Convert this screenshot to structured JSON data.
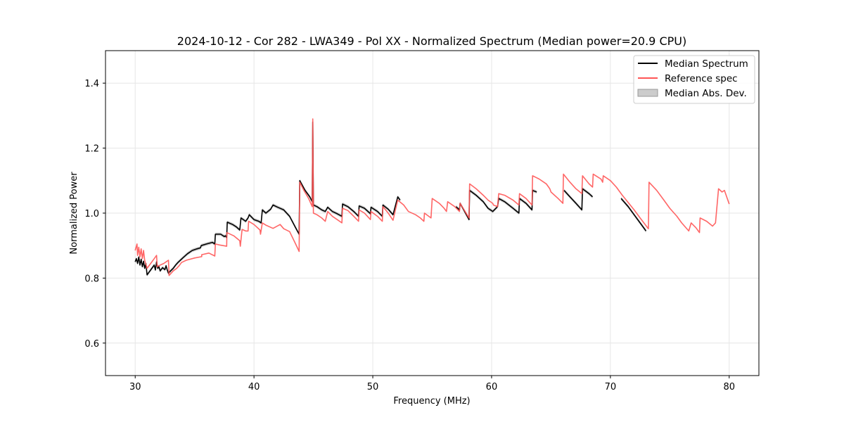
{
  "chart_data": {
    "type": "line",
    "title": "2024-10-12 - Cor 282 - LWA349 - Pol XX - Normalized Spectrum (Median power=20.9 CPU)",
    "xlabel": "Frequency (MHz)",
    "ylabel": "Normalized Power",
    "xlim": [
      27.5,
      82.5
    ],
    "ylim": [
      0.5,
      1.5
    ],
    "xticks": [
      30,
      40,
      50,
      60,
      70,
      80
    ],
    "yticks": [
      0.6,
      0.8,
      1.0,
      1.2,
      1.4
    ],
    "xtick_labels": [
      "30",
      "40",
      "50",
      "60",
      "70",
      "80"
    ],
    "ytick_labels": [
      "0.6",
      "0.8",
      "1.0",
      "1.2",
      "1.4"
    ],
    "grid": true,
    "legend_position": "top-right",
    "legend": [
      "Median Spectrum",
      "Reference spec",
      "Median Abs. Dev."
    ],
    "colors": {
      "median": "#000000",
      "reference": "#ff5555",
      "mad": "#aaaaaa",
      "grid": "#e6e6e6",
      "axes": "#000000"
    },
    "series": [
      {
        "name": "Reference spec",
        "points": [
          [
            30.0,
            0.885
          ],
          [
            30.15,
            0.905
          ],
          [
            30.2,
            0.87
          ],
          [
            30.3,
            0.895
          ],
          [
            30.4,
            0.865
          ],
          [
            30.5,
            0.89
          ],
          [
            30.6,
            0.86
          ],
          [
            30.7,
            0.885
          ],
          [
            30.8,
            0.855
          ],
          [
            31.0,
            0.83
          ],
          [
            31.3,
            0.845
          ],
          [
            31.6,
            0.86
          ],
          [
            31.8,
            0.87
          ],
          [
            31.85,
            0.835
          ],
          [
            32.1,
            0.84
          ],
          [
            32.4,
            0.845
          ],
          [
            32.6,
            0.85
          ],
          [
            32.8,
            0.855
          ],
          [
            32.85,
            0.808
          ],
          [
            33.2,
            0.822
          ],
          [
            33.5,
            0.83
          ],
          [
            33.7,
            0.838
          ],
          [
            33.9,
            0.848
          ],
          [
            34.3,
            0.855
          ],
          [
            35.0,
            0.862
          ],
          [
            35.6,
            0.866
          ],
          [
            35.6,
            0.872
          ],
          [
            36.2,
            0.877
          ],
          [
            36.7,
            0.868
          ],
          [
            36.75,
            0.905
          ],
          [
            37.1,
            0.902
          ],
          [
            37.7,
            0.898
          ],
          [
            37.72,
            0.94
          ],
          [
            38.3,
            0.93
          ],
          [
            38.8,
            0.915
          ],
          [
            38.85,
            0.898
          ],
          [
            39.0,
            0.95
          ],
          [
            39.3,
            0.945
          ],
          [
            39.5,
            0.945
          ],
          [
            39.55,
            0.975
          ],
          [
            40.0,
            0.965
          ],
          [
            40.5,
            0.948
          ],
          [
            40.55,
            0.935
          ],
          [
            40.7,
            0.97
          ],
          [
            41.0,
            0.963
          ],
          [
            41.6,
            0.953
          ],
          [
            42.2,
            0.965
          ],
          [
            42.5,
            0.952
          ],
          [
            43.0,
            0.943
          ],
          [
            43.5,
            0.905
          ],
          [
            43.8,
            0.882
          ],
          [
            43.85,
            1.095
          ],
          [
            44.2,
            1.07
          ],
          [
            44.6,
            1.045
          ],
          [
            44.9,
            1.02
          ],
          [
            44.95,
            1.29
          ],
          [
            45.0,
            1.0
          ],
          [
            45.3,
            0.995
          ],
          [
            45.7,
            0.985
          ],
          [
            46.0,
            0.975
          ],
          [
            46.2,
            1.005
          ],
          [
            46.6,
            0.99
          ],
          [
            47.0,
            0.98
          ],
          [
            47.4,
            0.97
          ],
          [
            47.45,
            1.015
          ],
          [
            47.9,
            1.008
          ],
          [
            48.4,
            0.99
          ],
          [
            48.8,
            0.975
          ],
          [
            48.85,
            1.01
          ],
          [
            49.3,
            1.0
          ],
          [
            49.8,
            0.98
          ],
          [
            49.85,
            1.005
          ],
          [
            50.4,
            0.99
          ],
          [
            50.8,
            0.975
          ],
          [
            50.85,
            1.02
          ],
          [
            51.3,
            1.0
          ],
          [
            51.7,
            0.978
          ],
          [
            52.1,
            1.04
          ],
          [
            52.6,
            1.025
          ],
          [
            53.0,
            1.005
          ],
          [
            53.6,
            0.995
          ],
          [
            54.0,
            0.985
          ],
          [
            54.3,
            0.975
          ],
          [
            54.35,
            1.0
          ],
          [
            54.9,
            0.985
          ],
          [
            55.0,
            1.045
          ],
          [
            55.6,
            1.03
          ],
          [
            56.0,
            1.015
          ],
          [
            56.2,
            1.005
          ],
          [
            56.3,
            1.035
          ],
          [
            56.9,
            1.02
          ],
          [
            57.3,
            1.005
          ],
          [
            57.35,
            1.03
          ],
          [
            58.1,
            0.985
          ],
          [
            58.15,
            1.09
          ],
          [
            58.7,
            1.075
          ],
          [
            59.3,
            1.055
          ],
          [
            59.7,
            1.04
          ],
          [
            60.1,
            1.03
          ],
          [
            60.15,
            1.025
          ],
          [
            60.5,
            1.02
          ],
          [
            60.6,
            1.06
          ],
          [
            61.1,
            1.055
          ],
          [
            61.8,
            1.04
          ],
          [
            62.3,
            1.025
          ],
          [
            62.35,
            1.06
          ],
          [
            62.9,
            1.045
          ],
          [
            63.4,
            1.025
          ],
          [
            63.45,
            1.115
          ],
          [
            64.0,
            1.105
          ],
          [
            64.6,
            1.09
          ],
          [
            64.9,
            1.075
          ],
          [
            65.0,
            1.065
          ],
          [
            65.6,
            1.045
          ],
          [
            66.0,
            1.03
          ],
          [
            66.05,
            1.12
          ],
          [
            66.6,
            1.095
          ],
          [
            67.1,
            1.075
          ],
          [
            67.6,
            1.06
          ],
          [
            67.65,
            1.115
          ],
          [
            68.2,
            1.09
          ],
          [
            68.5,
            1.08
          ],
          [
            68.55,
            1.12
          ],
          [
            69.2,
            1.105
          ],
          [
            69.35,
            1.095
          ],
          [
            69.4,
            1.115
          ],
          [
            70.0,
            1.1
          ],
          [
            70.5,
            1.08
          ],
          [
            71.0,
            1.055
          ],
          [
            72.0,
            1.01
          ],
          [
            72.5,
            0.985
          ],
          [
            73.2,
            0.952
          ],
          [
            73.25,
            1.095
          ],
          [
            73.9,
            1.07
          ],
          [
            74.5,
            1.04
          ],
          [
            75.0,
            1.015
          ],
          [
            75.6,
            0.99
          ],
          [
            76.0,
            0.97
          ],
          [
            76.6,
            0.945
          ],
          [
            76.8,
            0.97
          ],
          [
            77.2,
            0.955
          ],
          [
            77.5,
            0.94
          ],
          [
            77.55,
            0.985
          ],
          [
            78.1,
            0.975
          ],
          [
            78.6,
            0.96
          ],
          [
            78.85,
            0.97
          ],
          [
            79.1,
            1.075
          ],
          [
            79.4,
            1.065
          ],
          [
            79.6,
            1.07
          ],
          [
            80.0,
            1.028
          ]
        ]
      },
      {
        "name": "Median Spectrum",
        "segments": [
          [
            [
              30.0,
              0.85
            ],
            [
              30.1,
              0.86
            ],
            [
              30.2,
              0.845
            ],
            [
              30.3,
              0.865
            ],
            [
              30.4,
              0.84
            ],
            [
              30.5,
              0.858
            ],
            [
              30.6,
              0.835
            ],
            [
              30.7,
              0.852
            ],
            [
              30.8,
              0.83
            ],
            [
              30.9,
              0.845
            ],
            [
              31.0,
              0.81
            ],
            [
              31.2,
              0.82
            ],
            [
              31.4,
              0.83
            ],
            [
              31.6,
              0.84
            ],
            [
              31.7,
              0.825
            ],
            [
              31.8,
              0.85
            ],
            [
              31.9,
              0.83
            ],
            [
              32.0,
              0.835
            ],
            [
              32.1,
              0.822
            ],
            [
              32.3,
              0.832
            ],
            [
              32.5,
              0.826
            ],
            [
              32.6,
              0.838
            ],
            [
              32.7,
              0.825
            ],
            [
              32.8,
              0.815
            ],
            [
              33.0,
              0.823
            ],
            [
              33.2,
              0.83
            ],
            [
              33.4,
              0.84
            ],
            [
              33.6,
              0.848
            ],
            [
              34.0,
              0.862
            ],
            [
              34.4,
              0.875
            ],
            [
              34.8,
              0.885
            ],
            [
              35.2,
              0.89
            ],
            [
              35.5,
              0.893
            ],
            [
              35.55,
              0.9
            ],
            [
              36.0,
              0.905
            ],
            [
              36.5,
              0.91
            ],
            [
              36.7,
              0.905
            ],
            [
              36.75,
              0.935
            ],
            [
              37.2,
              0.935
            ],
            [
              37.5,
              0.928
            ],
            [
              37.6,
              0.93
            ],
            [
              37.7,
              0.925
            ],
            [
              37.75,
              0.972
            ],
            [
              38.2,
              0.965
            ],
            [
              38.5,
              0.958
            ],
            [
              38.8,
              0.948
            ],
            [
              38.9,
              0.985
            ],
            [
              39.3,
              0.975
            ],
            [
              39.5,
              0.985
            ],
            [
              39.6,
              0.995
            ],
            [
              40.0,
              0.98
            ],
            [
              40.4,
              0.975
            ],
            [
              40.6,
              0.97
            ],
            [
              40.7,
              1.01
            ],
            [
              41.0,
              1.0
            ],
            [
              41.4,
              1.012
            ],
            [
              41.6,
              1.025
            ],
            [
              42.0,
              1.018
            ],
            [
              42.5,
              1.01
            ],
            [
              43.0,
              0.99
            ],
            [
              43.5,
              0.955
            ],
            [
              43.8,
              0.935
            ],
            [
              43.85,
              1.1
            ],
            [
              44.3,
              1.07
            ],
            [
              44.7,
              1.05
            ],
            [
              44.9,
              1.035
            ],
            [
              44.95,
              1.28
            ],
            [
              45.0,
              1.025
            ],
            [
              45.3,
              1.02
            ],
            [
              45.7,
              1.01
            ],
            [
              46.0,
              1.005
            ],
            [
              46.2,
              1.018
            ],
            [
              46.6,
              1.005
            ],
            [
              47.0,
              0.998
            ],
            [
              47.4,
              0.99
            ],
            [
              47.45,
              1.028
            ],
            [
              47.9,
              1.02
            ],
            [
              48.4,
              1.005
            ],
            [
              48.8,
              0.99
            ],
            [
              48.85,
              1.022
            ],
            [
              49.3,
              1.015
            ],
            [
              49.8,
              0.998
            ],
            [
              49.85,
              1.018
            ],
            [
              50.4,
              1.005
            ],
            [
              50.8,
              0.99
            ],
            [
              50.85,
              1.025
            ],
            [
              51.3,
              1.012
            ],
            [
              51.7,
              0.995
            ],
            [
              52.1,
              1.05
            ],
            [
              52.3,
              1.04
            ]
          ],
          [
            [
              57.0,
              1.02
            ],
            [
              57.3,
              1.01
            ],
            [
              57.35,
              1.03
            ],
            [
              58.1,
              0.98
            ],
            [
              58.15,
              1.07
            ],
            [
              58.7,
              1.055
            ],
            [
              59.3,
              1.035
            ],
            [
              59.7,
              1.015
            ],
            [
              60.1,
              1.005
            ],
            [
              60.5,
              1.02
            ],
            [
              60.6,
              1.045
            ],
            [
              61.1,
              1.035
            ],
            [
              61.8,
              1.015
            ],
            [
              62.3,
              1.0
            ],
            [
              62.35,
              1.045
            ],
            [
              62.9,
              1.03
            ],
            [
              63.4,
              1.01
            ],
            [
              63.45,
              1.07
            ],
            [
              63.8,
              1.065
            ]
          ],
          [
            [
              66.1,
              1.07
            ],
            [
              66.6,
              1.05
            ],
            [
              67.1,
              1.03
            ],
            [
              67.6,
              1.01
            ],
            [
              67.65,
              1.075
            ],
            [
              68.2,
              1.06
            ],
            [
              68.5,
              1.05
            ]
          ],
          [
            [
              70.9,
              1.045
            ],
            [
              71.5,
              1.02
            ],
            [
              72.0,
              0.995
            ],
            [
              72.5,
              0.97
            ],
            [
              73.0,
              0.945
            ]
          ]
        ]
      }
    ]
  }
}
